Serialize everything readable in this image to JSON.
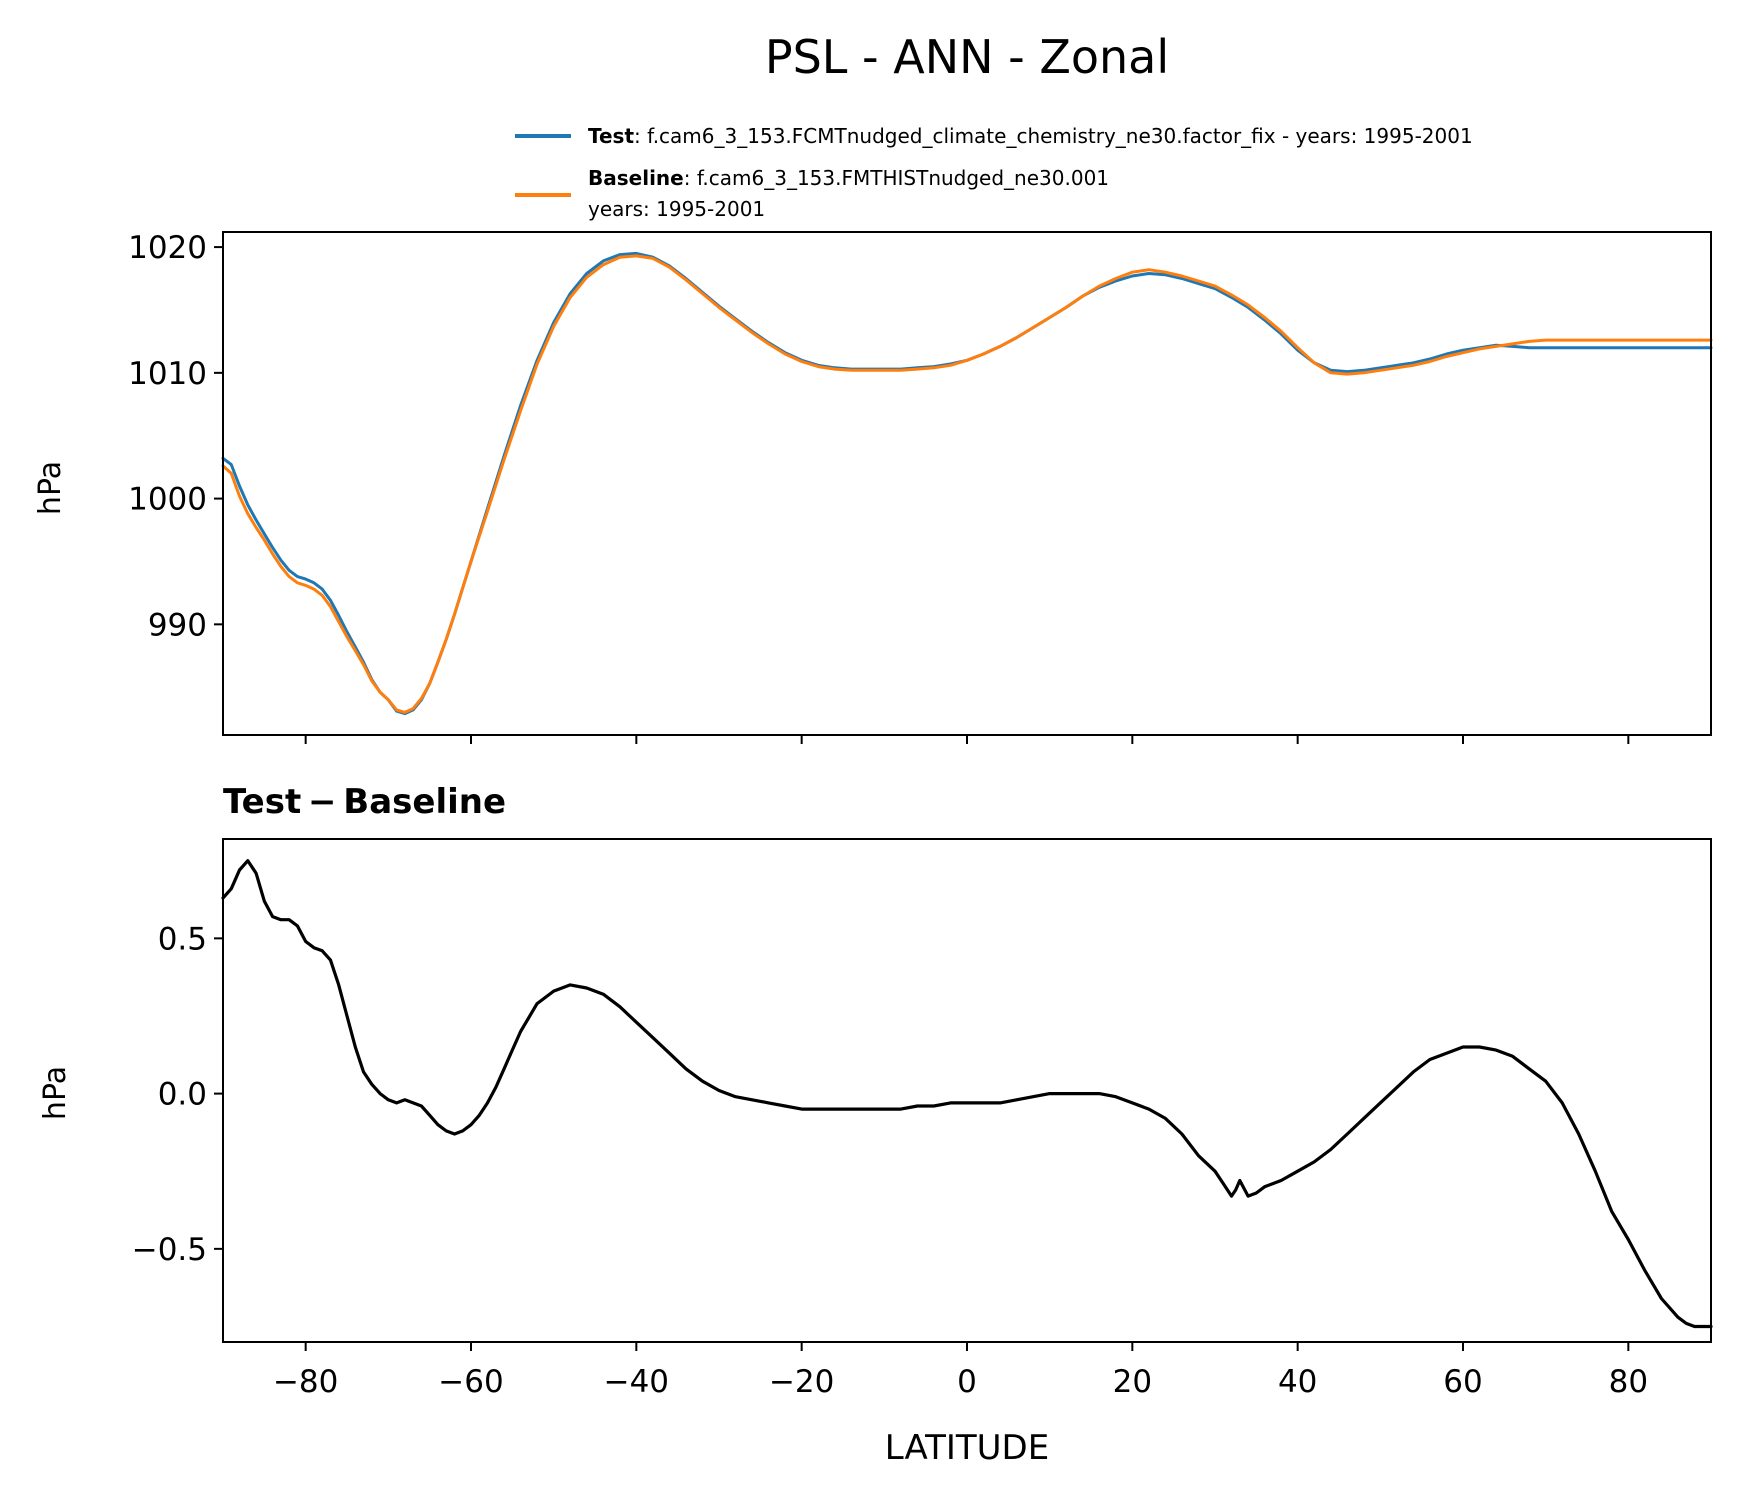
{
  "figure": {
    "title": "PSL - ANN - Zonal"
  },
  "colors": {
    "test": "#1f77b4",
    "baseline": "#ff7f0e",
    "difference": "#000000"
  },
  "chart_data": [
    {
      "type": "line",
      "ylabel": "hPa",
      "xlim": [
        -90,
        90
      ],
      "ylim": [
        981.2,
        1021.2
      ],
      "yticks": [
        990,
        1000,
        1010,
        1020
      ],
      "ytick_labels": [
        "990",
        "1000",
        "1010",
        "1020"
      ],
      "xticks": [
        -80,
        -60,
        -40,
        -20,
        0,
        20,
        40,
        60,
        80
      ],
      "grid": false,
      "legend": {
        "position": "above",
        "entries": [
          {
            "bold": "Test",
            "text": ": f.cam6_3_153.FCMTnudged_climate_chemistry_ne30.factor_fix - years: 1995-2001",
            "series": "test"
          },
          {
            "bold": "Baseline",
            "text": ": f.cam6_3_153.FMTHISTnudged_ne30.001",
            "text2": "years: 1995-2001",
            "series": "baseline"
          }
        ]
      },
      "x": [
        -90,
        -89,
        -88,
        -87,
        -86,
        -85,
        -84,
        -83,
        -82,
        -81,
        -80,
        -79,
        -78,
        -77,
        -76,
        -75,
        -74,
        -73,
        -72,
        -71,
        -70,
        -69,
        -68,
        -67,
        -66,
        -65,
        -64,
        -63,
        -62,
        -61,
        -60,
        -58,
        -56,
        -54,
        -52,
        -50,
        -48,
        -46,
        -44,
        -42,
        -40,
        -38,
        -36,
        -34,
        -32,
        -30,
        -28,
        -26,
        -24,
        -22,
        -20,
        -18,
        -16,
        -14,
        -12,
        -10,
        -8,
        -6,
        -4,
        -2,
        0,
        2,
        4,
        6,
        8,
        10,
        12,
        14,
        16,
        18,
        20,
        22,
        24,
        26,
        28,
        30,
        32,
        34,
        36,
        38,
        40,
        42,
        44,
        46,
        48,
        50,
        52,
        54,
        56,
        58,
        60,
        62,
        64,
        66,
        68,
        70,
        72,
        74,
        76,
        78,
        80,
        82,
        84,
        86,
        88,
        90
      ],
      "series": [
        {
          "name": "Test",
          "color": "#1f77b4",
          "values": [
            1003.2,
            1002.7,
            1001.0,
            999.5,
            998.3,
            997.2,
            996.1,
            995.1,
            994.3,
            993.8,
            993.6,
            993.3,
            992.8,
            991.9,
            990.7,
            989.4,
            988.2,
            987.0,
            985.6,
            984.6,
            984.0,
            983.1,
            982.9,
            983.2,
            984.0,
            985.3,
            987.0,
            988.8,
            990.8,
            992.9,
            995.0,
            999.2,
            1003.4,
            1007.4,
            1011.0,
            1014.0,
            1016.3,
            1017.9,
            1018.9,
            1019.4,
            1019.5,
            1019.2,
            1018.5,
            1017.5,
            1016.4,
            1015.3,
            1014.3,
            1013.3,
            1012.4,
            1011.6,
            1011.0,
            1010.6,
            1010.4,
            1010.3,
            1010.3,
            1010.3,
            1010.3,
            1010.4,
            1010.5,
            1010.7,
            1011.0,
            1011.5,
            1012.1,
            1012.8,
            1013.6,
            1014.4,
            1015.2,
            1016.1,
            1016.8,
            1017.3,
            1017.7,
            1017.9,
            1017.8,
            1017.5,
            1017.1,
            1016.7,
            1016.0,
            1015.2,
            1014.2,
            1013.1,
            1011.8,
            1010.8,
            1010.2,
            1010.1,
            1010.2,
            1010.4,
            1010.6,
            1010.8,
            1011.1,
            1011.5,
            1011.8,
            1012.0,
            1012.2,
            1012.1,
            1012.0,
            1012.0,
            1012.0,
            1012.0,
            1012.0,
            1012.0,
            1012.0,
            1012.0,
            1012.0,
            1012.0,
            1012.0,
            1012.0
          ],
          "line_width": 3.0
        },
        {
          "name": "Baseline",
          "color": "#ff7f0e",
          "values": [
            1002.6,
            1002.0,
            1000.2,
            998.8,
            997.7,
            996.7,
            995.6,
            994.6,
            993.8,
            993.3,
            993.1,
            992.8,
            992.3,
            991.4,
            990.2,
            989.0,
            987.9,
            986.8,
            985.5,
            984.6,
            984.0,
            983.2,
            983.0,
            983.3,
            984.1,
            985.3,
            987.0,
            988.8,
            990.8,
            992.9,
            995.0,
            999.0,
            1003.1,
            1007.0,
            1010.7,
            1013.7,
            1016.0,
            1017.6,
            1018.6,
            1019.2,
            1019.3,
            1019.1,
            1018.4,
            1017.4,
            1016.3,
            1015.2,
            1014.2,
            1013.2,
            1012.3,
            1011.5,
            1010.9,
            1010.5,
            1010.3,
            1010.2,
            1010.2,
            1010.2,
            1010.2,
            1010.3,
            1010.4,
            1010.6,
            1011.0,
            1011.5,
            1012.1,
            1012.8,
            1013.6,
            1014.4,
            1015.2,
            1016.1,
            1016.9,
            1017.5,
            1018.0,
            1018.2,
            1018.0,
            1017.7,
            1017.3,
            1016.9,
            1016.2,
            1015.4,
            1014.4,
            1013.3,
            1012.0,
            1010.8,
            1010.0,
            1009.9,
            1010.0,
            1010.2,
            1010.4,
            1010.6,
            1010.9,
            1011.3,
            1011.6,
            1011.9,
            1012.1,
            1012.3,
            1012.5,
            1012.6,
            1012.6,
            1012.6,
            1012.6,
            1012.6,
            1012.6,
            1012.6,
            1012.6,
            1012.6,
            1012.6,
            1012.6
          ],
          "line_width": 3.0
        }
      ]
    },
    {
      "type": "line",
      "title": "Test − Baseline",
      "xlabel": "LATITUDE",
      "ylabel": "hPa",
      "xlim": [
        -90,
        90
      ],
      "ylim": [
        -0.8,
        0.82
      ],
      "yticks": [
        -0.5,
        0.0,
        0.5
      ],
      "ytick_labels": [
        "−0.5",
        "0.0",
        "0.5"
      ],
      "xticks": [
        -80,
        -60,
        -40,
        -20,
        0,
        20,
        40,
        60,
        80
      ],
      "xtick_labels": [
        "−80",
        "−60",
        "−40",
        "−20",
        "0",
        "20",
        "40",
        "60",
        "80"
      ],
      "grid": false,
      "x": [
        -90,
        -89,
        -88,
        -87,
        -86,
        -85,
        -84,
        -83,
        -82,
        -81,
        -80,
        -79,
        -78,
        -77,
        -76,
        -75,
        -74,
        -73,
        -72,
        -71,
        -70,
        -69,
        -68,
        -67,
        -66,
        -65,
        -64,
        -63,
        -62,
        -61,
        -60,
        -59,
        -58,
        -57,
        -56,
        -55,
        -54,
        -52,
        -50,
        -48,
        -46,
        -44,
        -42,
        -40,
        -38,
        -36,
        -34,
        -32,
        -30,
        -28,
        -26,
        -24,
        -22,
        -20,
        -18,
        -16,
        -14,
        -12,
        -10,
        -8,
        -6,
        -4,
        -2,
        0,
        2,
        4,
        6,
        8,
        10,
        12,
        14,
        16,
        18,
        20,
        22,
        24,
        26,
        28,
        30,
        31,
        32,
        32.5,
        33,
        34,
        35,
        36,
        37,
        38,
        40,
        42,
        44,
        46,
        48,
        50,
        52,
        54,
        56,
        58,
        60,
        62,
        64,
        66,
        68,
        70,
        72,
        74,
        76,
        78,
        80,
        82,
        84,
        86,
        87,
        88,
        89,
        90
      ],
      "series": [
        {
          "name": "",
          "color": "#000000",
          "values": [
            0.63,
            0.66,
            0.72,
            0.75,
            0.71,
            0.62,
            0.57,
            0.56,
            0.56,
            0.54,
            0.49,
            0.47,
            0.46,
            0.43,
            0.35,
            0.25,
            0.15,
            0.07,
            0.03,
            0.0,
            -0.02,
            -0.03,
            -0.02,
            -0.03,
            -0.04,
            -0.07,
            -0.1,
            -0.12,
            -0.13,
            -0.12,
            -0.1,
            -0.07,
            -0.03,
            0.02,
            0.08,
            0.14,
            0.2,
            0.29,
            0.33,
            0.35,
            0.34,
            0.32,
            0.28,
            0.23,
            0.18,
            0.13,
            0.08,
            0.04,
            0.01,
            -0.01,
            -0.02,
            -0.03,
            -0.04,
            -0.05,
            -0.05,
            -0.05,
            -0.05,
            -0.05,
            -0.05,
            -0.05,
            -0.04,
            -0.04,
            -0.03,
            -0.03,
            -0.03,
            -0.03,
            -0.02,
            -0.01,
            0.0,
            0.0,
            0.0,
            0.0,
            -0.01,
            -0.03,
            -0.05,
            -0.08,
            -0.13,
            -0.2,
            -0.25,
            -0.29,
            -0.33,
            -0.31,
            -0.28,
            -0.33,
            -0.32,
            -0.3,
            -0.29,
            -0.28,
            -0.25,
            -0.22,
            -0.18,
            -0.13,
            -0.08,
            -0.03,
            0.02,
            0.07,
            0.11,
            0.13,
            0.15,
            0.15,
            0.14,
            0.12,
            0.08,
            0.04,
            -0.03,
            -0.13,
            -0.25,
            -0.38,
            -0.47,
            -0.57,
            -0.66,
            -0.72,
            -0.74,
            -0.75,
            -0.75,
            -0.75
          ]
        }
      ]
    }
  ]
}
